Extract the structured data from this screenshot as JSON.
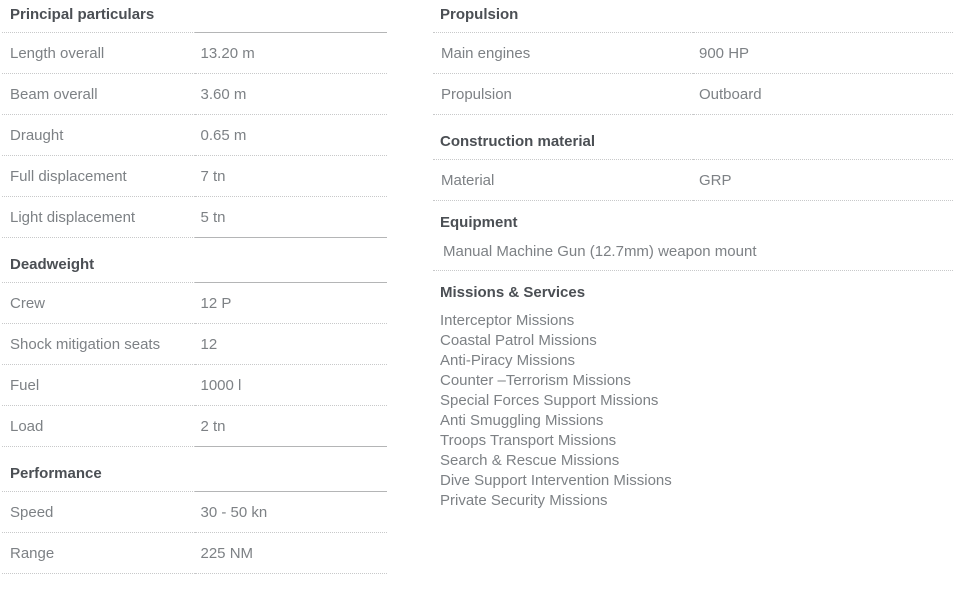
{
  "colors": {
    "background": "#ffffff",
    "header_text": "#4b4f54",
    "body_text": "#7d8185",
    "dotted_line": "#c8c9ca",
    "solid_line": "#b4b5b6"
  },
  "left_column": {
    "sections": [
      {
        "title": "Principal particulars",
        "rows": [
          {
            "label": "Length overall",
            "value": "13.20 m"
          },
          {
            "label": "Beam overall",
            "value": "3.60 m"
          },
          {
            "label": "Draught",
            "value": "0.65 m"
          },
          {
            "label": "Full displacement",
            "value": "7 tn"
          },
          {
            "label": "Light displacement",
            "value": "5 tn"
          }
        ]
      },
      {
        "title": "Deadweight",
        "rows": [
          {
            "label": "Crew",
            "value": "12 P"
          },
          {
            "label": "Shock mitigation seats",
            "value": "12"
          },
          {
            "label": "Fuel",
            "value": "1000 l"
          },
          {
            "label": "Load",
            "value": "2 tn"
          }
        ]
      },
      {
        "title": "Performance",
        "rows": [
          {
            "label": "Speed",
            "value": "30 - 50 kn"
          },
          {
            "label": "Range",
            "value": "225 NM"
          }
        ]
      }
    ]
  },
  "right_column": {
    "sections": [
      {
        "title": "Propulsion",
        "rows": [
          {
            "label": "Main engines",
            "value": "900 HP"
          },
          {
            "label": "Propulsion",
            "value": "Outboard"
          }
        ]
      },
      {
        "title": "Construction material",
        "rows": [
          {
            "label": "Material",
            "value": "GRP"
          }
        ]
      },
      {
        "title": "Equipment",
        "text": "Manual Machine Gun (12.7mm) weapon mount"
      },
      {
        "title": "Missions & Services",
        "items": [
          "Interceptor Missions",
          "Coastal Patrol Missions",
          "Anti-Piracy Missions",
          "Counter –Terrorism Missions",
          "Special Forces Support Missions",
          "Anti Smuggling Missions",
          "Troops Transport Missions",
          "Search & Rescue Missions",
          "Dive Support Intervention Missions",
          "Private Security Missions"
        ]
      }
    ]
  }
}
